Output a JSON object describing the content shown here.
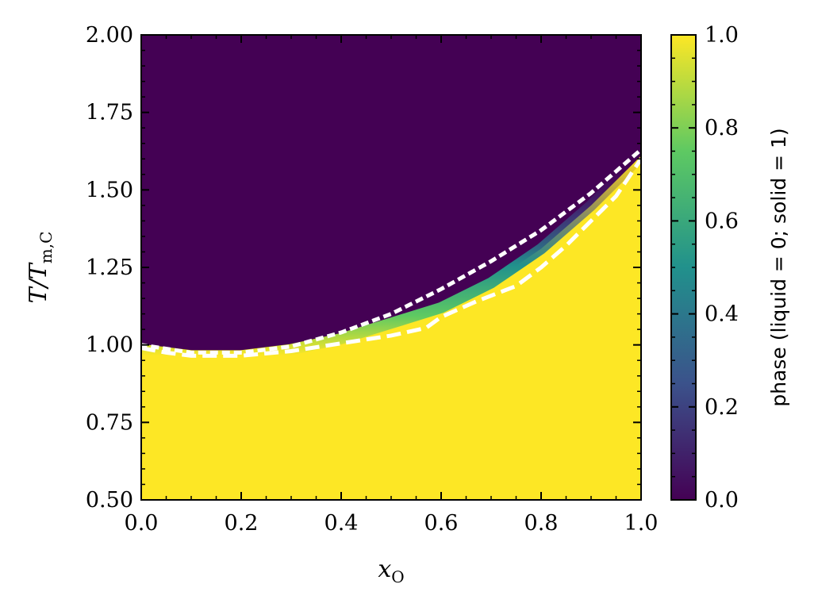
{
  "chart_data": {
    "type": "heatmap",
    "title": "",
    "xlabel": {
      "base": "x",
      "sub": "O"
    },
    "ylabel": {
      "base": "T/T",
      "sub": "m,C"
    },
    "xlim": [
      0.0,
      1.0
    ],
    "ylim": [
      0.5,
      2.0
    ],
    "x_tick_labels": [
      "0.0",
      "0.2",
      "0.4",
      "0.6",
      "0.8",
      "1.0"
    ],
    "y_tick_labels": [
      "0.50",
      "0.75",
      "1.00",
      "1.25",
      "1.50",
      "1.75",
      "2.00"
    ],
    "colorbar": {
      "label": "phase (liquid = 0; solid = 1)",
      "range": [
        0.0,
        1.0
      ],
      "tick_labels": [
        "0.0",
        "0.2",
        "0.4",
        "0.6",
        "0.8",
        "1.0"
      ],
      "colormap": [
        "#440154",
        "#3b528b",
        "#21918c",
        "#5ec962",
        "#fde725"
      ]
    },
    "phase_boundary": {
      "description_free": true,
      "x": [
        0.0,
        0.1,
        0.2,
        0.3,
        0.4,
        0.5,
        0.6,
        0.7,
        0.8,
        0.9,
        1.0
      ],
      "y": [
        0.985,
        0.965,
        0.965,
        0.985,
        1.02,
        1.07,
        1.12,
        1.2,
        1.31,
        1.45,
        1.61
      ],
      "liquid_value": 0.0,
      "solid_value": 1.0
    },
    "series": [
      {
        "style": "dashed",
        "color": "#ffffff",
        "x": [
          0.0,
          0.05,
          0.1,
          0.2,
          0.3,
          0.4,
          0.5,
          0.57,
          0.6,
          0.67,
          0.75,
          0.8,
          0.85,
          0.9,
          0.95,
          1.0
        ],
        "y": [
          0.99,
          0.975,
          0.965,
          0.965,
          0.98,
          1.005,
          1.03,
          1.055,
          1.09,
          1.14,
          1.19,
          1.25,
          1.32,
          1.4,
          1.48,
          1.6
        ]
      },
      {
        "style": "dotted",
        "color": "#ffffff",
        "x": [
          0.0,
          0.1,
          0.2,
          0.3,
          0.4,
          0.5,
          0.6,
          0.7,
          0.8,
          0.9,
          1.0
        ],
        "y": [
          1.0,
          0.975,
          0.975,
          0.995,
          1.04,
          1.1,
          1.18,
          1.27,
          1.37,
          1.49,
          1.63
        ]
      }
    ]
  }
}
